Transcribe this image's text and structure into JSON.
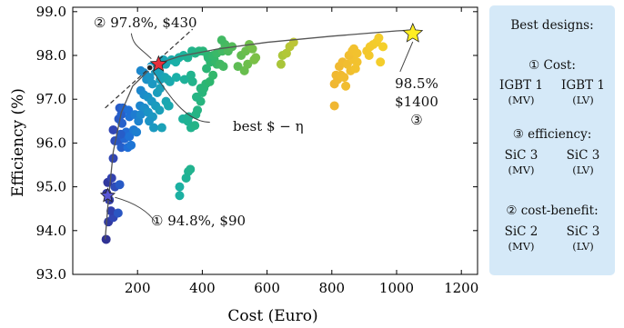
{
  "chart_data": {
    "type": "scatter",
    "xlabel": "Cost (Euro)",
    "ylabel": "Efficiency (%)",
    "xlim": [
      0,
      1250
    ],
    "ylim": [
      93.0,
      99.1
    ],
    "xticks": [
      "200",
      "400",
      "600",
      "800",
      "1000",
      "1200"
    ],
    "yticks": [
      "93.0",
      "94.0",
      "95.0",
      "96.0",
      "97.0",
      "98.0",
      "99.0"
    ],
    "grid": false,
    "series": [
      {
        "values": [
          [
            103,
            93.8
          ],
          [
            110,
            94.2
          ],
          [
            125,
            94.3
          ],
          [
            118,
            94.45
          ],
          [
            140,
            94.4
          ],
          [
            113,
            94.7
          ],
          [
            105,
            94.85
          ],
          [
            130,
            95.0
          ],
          [
            108,
            95.1
          ],
          [
            145,
            95.05
          ],
          [
            120,
            95.2
          ],
          [
            125,
            96.3
          ],
          [
            130,
            96.05
          ],
          [
            140,
            96.05
          ],
          [
            150,
            95.9
          ],
          [
            160,
            96.1
          ],
          [
            170,
            95.9
          ],
          [
            125,
            95.65
          ],
          [
            180,
            95.95
          ],
          [
            142,
            96.55
          ],
          [
            152,
            96.45
          ],
          [
            165,
            96.25
          ],
          [
            175,
            96.15
          ],
          [
            188,
            96.3
          ],
          [
            197,
            96.25
          ],
          [
            150,
            96.65
          ],
          [
            175,
            96.6
          ],
          [
            145,
            96.8
          ],
          [
            155,
            96.8
          ],
          [
            172,
            96.75
          ],
          [
            192,
            96.65
          ],
          [
            203,
            96.5
          ],
          [
            210,
            96.65
          ],
          [
            148,
            96.2
          ],
          [
            210,
            97.2
          ],
          [
            220,
            97.1
          ],
          [
            232,
            97.05
          ],
          [
            244,
            96.95
          ],
          [
            208,
            96.85
          ],
          [
            222,
            96.8
          ],
          [
            233,
            96.7
          ],
          [
            247,
            96.6
          ],
          [
            236,
            96.5
          ],
          [
            250,
            96.35
          ],
          [
            261,
            97.15
          ],
          [
            256,
            96.85
          ],
          [
            268,
            96.75
          ],
          [
            210,
            97.65
          ],
          [
            222,
            97.6
          ],
          [
            228,
            97.45
          ],
          [
            238,
            97.5
          ],
          [
            246,
            97.35
          ],
          [
            243,
            97.75
          ],
          [
            255,
            97.65
          ],
          [
            268,
            97.6
          ],
          [
            270,
            97.45
          ],
          [
            270,
            97.25
          ],
          [
            285,
            97.5
          ],
          [
            293,
            97.45
          ],
          [
            287,
            97.8
          ],
          [
            280,
            97.9
          ],
          [
            300,
            97.4
          ],
          [
            288,
            96.95
          ],
          [
            297,
            96.85
          ],
          [
            275,
            96.35
          ],
          [
            295,
            96.85
          ],
          [
            330,
            94.8
          ],
          [
            330,
            95.0
          ],
          [
            350,
            95.2
          ],
          [
            357,
            95.35
          ],
          [
            363,
            95.4
          ],
          [
            340,
            96.55
          ],
          [
            355,
            96.5
          ],
          [
            365,
            96.35
          ],
          [
            358,
            96.6
          ],
          [
            377,
            96.4
          ],
          [
            380,
            96.65
          ],
          [
            385,
            96.75
          ],
          [
            395,
            96.95
          ],
          [
            382,
            97.05
          ],
          [
            400,
            97.15
          ],
          [
            395,
            97.25
          ],
          [
            305,
            97.9
          ],
          [
            318,
            97.85
          ],
          [
            328,
            97.95
          ],
          [
            342,
            98.0
          ],
          [
            355,
            97.95
          ],
          [
            368,
            98.1
          ],
          [
            378,
            98.05
          ],
          [
            390,
            98.1
          ],
          [
            402,
            98.1
          ],
          [
            417,
            98.0
          ],
          [
            428,
            97.9
          ],
          [
            320,
            97.5
          ],
          [
            345,
            97.45
          ],
          [
            365,
            97.55
          ],
          [
            370,
            97.4
          ],
          [
            405,
            97.25
          ],
          [
            411,
            97.35
          ],
          [
            423,
            97.4
          ],
          [
            433,
            97.55
          ],
          [
            445,
            97.8
          ],
          [
            413,
            97.7
          ],
          [
            425,
            97.85
          ],
          [
            437,
            97.9
          ],
          [
            455,
            97.8
          ],
          [
            465,
            97.75
          ],
          [
            418,
            97.95
          ],
          [
            433,
            98.0
          ],
          [
            445,
            98.05
          ],
          [
            462,
            98.1
          ],
          [
            480,
            98.1
          ],
          [
            492,
            98.2
          ],
          [
            470,
            98.25
          ],
          [
            460,
            98.35
          ],
          [
            510,
            97.75
          ],
          [
            530,
            97.65
          ],
          [
            540,
            97.8
          ],
          [
            520,
            98.0
          ],
          [
            534,
            98.1
          ],
          [
            545,
            98.25
          ],
          [
            555,
            98.15
          ],
          [
            560,
            97.9
          ],
          [
            565,
            97.95
          ],
          [
            643,
            97.8
          ],
          [
            648,
            98.0
          ],
          [
            660,
            98.05
          ],
          [
            670,
            98.2
          ],
          [
            682,
            98.3
          ],
          [
            808,
            96.85
          ],
          [
            808,
            97.35
          ],
          [
            813,
            97.55
          ],
          [
            818,
            97.45
          ],
          [
            828,
            97.55
          ],
          [
            838,
            97.5
          ],
          [
            843,
            97.3
          ],
          [
            823,
            97.75
          ],
          [
            833,
            97.85
          ],
          [
            848,
            97.8
          ],
          [
            858,
            97.65
          ],
          [
            868,
            97.9
          ],
          [
            873,
            97.7
          ],
          [
            878,
            97.85
          ],
          [
            853,
            98.0
          ],
          [
            863,
            98.1
          ],
          [
            868,
            98.15
          ],
          [
            878,
            98.05
          ],
          [
            908,
            98.1
          ],
          [
            918,
            98.2
          ],
          [
            928,
            98.25
          ],
          [
            938,
            98.3
          ],
          [
            915,
            98.0
          ],
          [
            945,
            98.4
          ],
          [
            950,
            97.85
          ],
          [
            958,
            98.2
          ]
        ]
      }
    ],
    "pareto_front": [
      [
        100,
        93.8
      ],
      [
        110,
        94.7
      ],
      [
        125,
        95.8
      ],
      [
        150,
        96.7
      ],
      [
        185,
        97.3
      ],
      [
        240,
        97.7
      ],
      [
        265,
        97.82
      ],
      [
        330,
        97.98
      ],
      [
        450,
        98.15
      ],
      [
        600,
        98.3
      ],
      [
        800,
        98.44
      ],
      [
        1000,
        98.56
      ],
      [
        1050,
        98.58
      ]
    ],
    "dashed_line": [
      [
        100,
        96.8
      ],
      [
        265,
        97.82
      ],
      [
        370,
        98.6
      ]
    ],
    "highlighted_points": [
      {
        "marker": "star",
        "color": "#e6303c",
        "value": [
          265,
          97.8
        ],
        "label": "② 97.8%, $430"
      },
      {
        "marker": "star",
        "color": "#ffee22",
        "value": [
          1050,
          98.5
        ],
        "label": [
          "98.5%",
          "$1400",
          "③"
        ]
      },
      {
        "marker": "star",
        "color": "#5a58d6",
        "value": [
          108,
          94.8
        ],
        "label": "① 94.8%, $90"
      },
      {
        "marker": "dot",
        "color": "#222222",
        "value": [
          238,
          97.72
        ],
        "label": "best $ − η"
      }
    ],
    "colors": [
      "#2e2a87",
      "#3343b1",
      "#1f6fd8",
      "#1b95c5",
      "#1ab0a6",
      "#2db66f",
      "#6cbe4c",
      "#b5c736",
      "#f0b732",
      "#f4cf2a"
    ],
    "legend_panel": {
      "title": "Best designs:",
      "sections": [
        {
          "heading": "① Cost:",
          "items": [
            {
              "name": "IGBT 1",
              "sub": "(MV)"
            },
            {
              "name": "IGBT 1",
              "sub": "(LV)"
            }
          ]
        },
        {
          "heading": "③ efficiency:",
          "items": [
            {
              "name": "SiC 3",
              "sub": "(MV)"
            },
            {
              "name": "SiC 3",
              "sub": "(LV)"
            }
          ]
        },
        {
          "heading": "② cost-benefit:",
          "items": [
            {
              "name": "SiC 2",
              "sub": "(MV)"
            },
            {
              "name": "SiC 3",
              "sub": "(LV)"
            }
          ]
        }
      ]
    }
  }
}
